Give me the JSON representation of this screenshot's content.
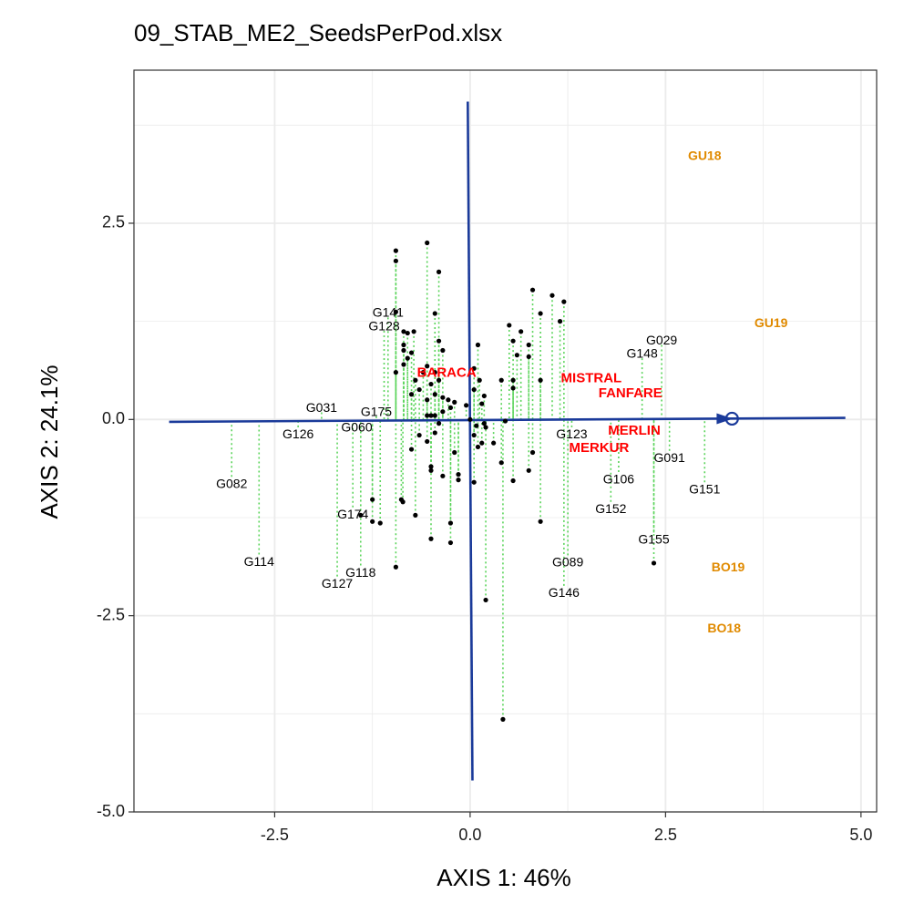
{
  "chart_data": {
    "type": "scatter",
    "title": "09_STAB_ME2_SeedsPerPod.xlsx",
    "xlabel": "AXIS 1: 46%",
    "ylabel": "AXIS 2: 24.1%",
    "xlim": [
      -4.3,
      5.2
    ],
    "ylim": [
      -5.0,
      4.45
    ],
    "x_ticks": [
      -2.5,
      0,
      2.5,
      5
    ],
    "x_tick_labels": [
      "-2.5",
      "0.0",
      "2.5",
      "5.0"
    ],
    "y_ticks": [
      2.5,
      0,
      -2.5,
      -5
    ],
    "y_tick_labels": [
      "2.5",
      "0.0",
      "-2.5",
      "-5.0"
    ],
    "grid": true,
    "colors": {
      "points": "#000000",
      "projection": "#5ad45a",
      "axis_line": "#1a3a9a",
      "reference_labels": "#ff0000",
      "environment_labels": "#e08a00",
      "grid": "#ebebeb",
      "panel_border": "#333333"
    },
    "average_environment_axis": {
      "start": [
        -3.85,
        -0.03
      ],
      "end": [
        4.8,
        0.02
      ],
      "arrow_at": [
        3.2,
        0.01
      ],
      "circle_at": [
        3.35,
        0.01
      ]
    },
    "perpendicular_axis": {
      "start": [
        -0.03,
        4.05
      ],
      "end": [
        0.03,
        -4.6
      ]
    },
    "projection_style": "dotted",
    "genotype_labels": [
      {
        "label": "G141",
        "x": -1.05,
        "y": 1.35
      },
      {
        "label": "G128",
        "x": -1.1,
        "y": 1.18
      },
      {
        "label": "G031",
        "x": -1.9,
        "y": 0.14
      },
      {
        "label": "G175",
        "x": -1.2,
        "y": 0.09
      },
      {
        "label": "G126",
        "x": -2.2,
        "y": -0.2
      },
      {
        "label": "G060",
        "x": -1.45,
        "y": -0.11
      },
      {
        "label": "G082",
        "x": -3.05,
        "y": -0.83
      },
      {
        "label": "G174",
        "x": -1.5,
        "y": -1.22
      },
      {
        "label": "G114",
        "x": -2.7,
        "y": -1.82
      },
      {
        "label": "G118",
        "x": -1.4,
        "y": -1.96
      },
      {
        "label": "G127",
        "x": -1.7,
        "y": -2.1
      },
      {
        "label": "G029",
        "x": 2.45,
        "y": 1.0
      },
      {
        "label": "G148",
        "x": 2.2,
        "y": 0.83
      },
      {
        "label": "G123",
        "x": 1.3,
        "y": -0.2
      },
      {
        "label": "G091",
        "x": 2.55,
        "y": -0.5
      },
      {
        "label": "G106",
        "x": 1.9,
        "y": -0.77
      },
      {
        "label": "G151",
        "x": 3.0,
        "y": -0.9
      },
      {
        "label": "G152",
        "x": 1.8,
        "y": -1.15
      },
      {
        "label": "G155",
        "x": 2.35,
        "y": -1.54
      },
      {
        "label": "G089",
        "x": 1.25,
        "y": -1.83
      },
      {
        "label": "G146",
        "x": 1.2,
        "y": -2.22
      }
    ],
    "reference_labels": [
      {
        "label": "BARACA",
        "x": -0.3,
        "y": 0.59
      },
      {
        "label": "MISTRAL",
        "x": 1.55,
        "y": 0.52
      },
      {
        "label": "FANFARE",
        "x": 2.05,
        "y": 0.33
      },
      {
        "label": "MERLIN",
        "x": 2.1,
        "y": -0.15
      },
      {
        "label": "MERKUR",
        "x": 1.65,
        "y": -0.37
      }
    ],
    "environment_labels": [
      {
        "label": "GU18",
        "x": 3.0,
        "y": 3.35
      },
      {
        "label": "GU19",
        "x": 3.85,
        "y": 1.22
      },
      {
        "label": "BO19",
        "x": 3.3,
        "y": -1.89
      },
      {
        "label": "BO18",
        "x": 3.25,
        "y": -2.67
      }
    ],
    "points": [
      [
        -0.95,
        2.15
      ],
      [
        -0.95,
        2.02
      ],
      [
        -0.55,
        2.25
      ],
      [
        -0.4,
        1.88
      ],
      [
        -0.45,
        1.35
      ],
      [
        -0.95,
        1.37
      ],
      [
        -0.85,
        1.12
      ],
      [
        -0.8,
        1.1
      ],
      [
        -0.72,
        1.12
      ],
      [
        -0.85,
        0.95
      ],
      [
        -0.85,
        0.88
      ],
      [
        -0.75,
        0.85
      ],
      [
        -0.8,
        0.78
      ],
      [
        -0.4,
        1.0
      ],
      [
        -0.35,
        0.88
      ],
      [
        -0.85,
        0.7
      ],
      [
        -0.95,
        0.6
      ],
      [
        -0.7,
        0.5
      ],
      [
        -0.6,
        0.6
      ],
      [
        -0.55,
        0.68
      ],
      [
        -0.45,
        0.6
      ],
      [
        -0.4,
        0.5
      ],
      [
        -0.5,
        0.45
      ],
      [
        -0.75,
        0.32
      ],
      [
        -0.65,
        0.38
      ],
      [
        -0.55,
        0.25
      ],
      [
        -0.45,
        0.32
      ],
      [
        -0.35,
        0.28
      ],
      [
        -0.28,
        0.25
      ],
      [
        -0.2,
        0.22
      ],
      [
        -0.25,
        0.15
      ],
      [
        -0.35,
        0.1
      ],
      [
        -0.45,
        0.05
      ],
      [
        -0.55,
        0.05
      ],
      [
        -0.4,
        -0.05
      ],
      [
        -0.65,
        -0.2
      ],
      [
        -0.45,
        -0.17
      ],
      [
        -0.75,
        -0.38
      ],
      [
        -0.55,
        -0.28
      ],
      [
        -0.5,
        -0.6
      ],
      [
        -0.5,
        -0.65
      ],
      [
        -0.35,
        -0.72
      ],
      [
        -0.2,
        -0.42
      ],
      [
        -0.15,
        -0.7
      ],
      [
        -0.15,
        -0.77
      ],
      [
        -1.25,
        -1.02
      ],
      [
        -0.88,
        -1.02
      ],
      [
        -0.86,
        -1.05
      ],
      [
        -0.7,
        -1.22
      ],
      [
        -1.4,
        -1.22
      ],
      [
        -1.25,
        -1.3
      ],
      [
        -1.15,
        -1.32
      ],
      [
        -0.25,
        -1.32
      ],
      [
        -0.5,
        -1.52
      ],
      [
        -0.25,
        -1.57
      ],
      [
        -0.95,
        -1.88
      ],
      [
        -0.5,
        0.05
      ],
      [
        0.05,
        0.65
      ],
      [
        0.1,
        0.95
      ],
      [
        0.12,
        0.5
      ],
      [
        0.05,
        0.38
      ],
      [
        0.18,
        0.3
      ],
      [
        0.15,
        0.2
      ],
      [
        -0.05,
        0.18
      ],
      [
        0.0,
        0.0
      ],
      [
        0.08,
        -0.08
      ],
      [
        0.18,
        -0.05
      ],
      [
        0.05,
        -0.2
      ],
      [
        0.15,
        -0.3
      ],
      [
        0.2,
        -0.1
      ],
      [
        0.3,
        -0.3
      ],
      [
        0.4,
        -0.55
      ],
      [
        0.1,
        -0.35
      ],
      [
        0.05,
        -0.8
      ],
      [
        0.55,
        -0.78
      ],
      [
        0.45,
        -0.02
      ],
      [
        0.55,
        0.4
      ],
      [
        0.5,
        1.2
      ],
      [
        0.65,
        1.12
      ],
      [
        0.55,
        1.0
      ],
      [
        0.6,
        0.82
      ],
      [
        0.75,
        0.8
      ],
      [
        0.75,
        0.95
      ],
      [
        0.9,
        1.35
      ],
      [
        0.8,
        1.65
      ],
      [
        1.05,
        1.58
      ],
      [
        1.2,
        1.5
      ],
      [
        1.15,
        1.25
      ],
      [
        0.9,
        0.5
      ],
      [
        0.55,
        0.5
      ],
      [
        0.8,
        -0.42
      ],
      [
        0.75,
        -0.65
      ],
      [
        0.9,
        -1.3
      ],
      [
        0.4,
        0.5
      ],
      [
        0.2,
        -2.3
      ],
      [
        0.42,
        -3.82
      ],
      [
        2.35,
        -1.83
      ]
    ]
  }
}
